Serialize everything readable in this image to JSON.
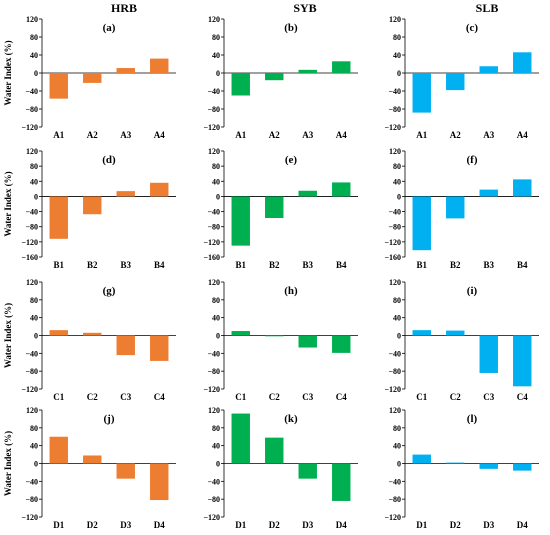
{
  "column_headers": [
    "HRB",
    "SYB",
    "SLB"
  ],
  "colors": {
    "HRB": "#ED7D31",
    "SYB": "#00B050",
    "SLB": "#00B0F0"
  },
  "ylabel": "Water Index (%)",
  "chart_data": [
    {
      "type": "bar",
      "title": "(a)",
      "basin": "HRB",
      "categories": [
        "A1",
        "A2",
        "A3",
        "A4"
      ],
      "values": [
        -57,
        -22,
        11,
        32
      ],
      "ylim": [
        -120,
        120
      ],
      "yticks": [
        120,
        80,
        40,
        0,
        -40,
        -80,
        -120
      ],
      "ylabel": "Water Index (%)"
    },
    {
      "type": "bar",
      "title": "(b)",
      "basin": "SYB",
      "categories": [
        "A1",
        "A2",
        "A3",
        "A4"
      ],
      "values": [
        -50,
        -16,
        7,
        26
      ],
      "ylim": [
        -120,
        120
      ],
      "yticks": [
        120,
        80,
        40,
        0,
        -40,
        -80,
        -120
      ]
    },
    {
      "type": "bar",
      "title": "(c)",
      "basin": "SLB",
      "categories": [
        "A1",
        "A2",
        "A3",
        "A4"
      ],
      "values": [
        -88,
        -38,
        15,
        46
      ],
      "ylim": [
        -120,
        120
      ],
      "yticks": [
        120,
        80,
        40,
        0,
        -40,
        -80,
        -120
      ]
    },
    {
      "type": "bar",
      "title": "(d)",
      "basin": "HRB",
      "categories": [
        "B1",
        "B2",
        "B3",
        "B4"
      ],
      "values": [
        -112,
        -47,
        14,
        36
      ],
      "ylim": [
        -160,
        120
      ],
      "yticks": [
        120,
        80,
        40,
        0,
        -40,
        -80,
        -120,
        -160
      ],
      "ylabel": "Water Index (%)"
    },
    {
      "type": "bar",
      "title": "(e)",
      "basin": "SYB",
      "categories": [
        "B1",
        "B2",
        "B3",
        "B4"
      ],
      "values": [
        -130,
        -57,
        15,
        37
      ],
      "ylim": [
        -160,
        120
      ],
      "yticks": [
        120,
        80,
        40,
        0,
        -40,
        -80,
        -120,
        -160
      ]
    },
    {
      "type": "bar",
      "title": "(f)",
      "basin": "SLB",
      "categories": [
        "B1",
        "B2",
        "B3",
        "B4"
      ],
      "values": [
        -142,
        -58,
        18,
        45
      ],
      "ylim": [
        -160,
        120
      ],
      "yticks": [
        120,
        80,
        40,
        0,
        -40,
        -80,
        -120,
        -160
      ]
    },
    {
      "type": "bar",
      "title": "(g)",
      "basin": "HRB",
      "categories": [
        "C1",
        "C2",
        "C3",
        "C4"
      ],
      "values": [
        12,
        6,
        -44,
        -57
      ],
      "ylim": [
        -120,
        120
      ],
      "yticks": [
        120,
        80,
        40,
        0,
        -40,
        -80,
        -120
      ],
      "ylabel": "Water Index (%)"
    },
    {
      "type": "bar",
      "title": "(h)",
      "basin": "SYB",
      "categories": [
        "C1",
        "C2",
        "C3",
        "C4"
      ],
      "values": [
        10,
        -1,
        -27,
        -39
      ],
      "ylim": [
        -120,
        120
      ],
      "yticks": [
        120,
        80,
        40,
        0,
        -40,
        -80,
        -120
      ]
    },
    {
      "type": "bar",
      "title": "(i)",
      "basin": "SLB",
      "categories": [
        "C1",
        "C2",
        "C3",
        "C4"
      ],
      "values": [
        12,
        11,
        -84,
        -114
      ],
      "ylim": [
        -120,
        120
      ],
      "yticks": [
        120,
        80,
        40,
        0,
        -40,
        -80,
        -120
      ]
    },
    {
      "type": "bar",
      "title": "(j)",
      "basin": "HRB",
      "categories": [
        "D1",
        "D2",
        "D3",
        "D4"
      ],
      "values": [
        60,
        18,
        -34,
        -82
      ],
      "ylim": [
        -120,
        120
      ],
      "yticks": [
        120,
        80,
        40,
        0,
        -40,
        -80,
        -120
      ],
      "ylabel": "Water Index (%)"
    },
    {
      "type": "bar",
      "title": "(k)",
      "basin": "SYB",
      "categories": [
        "D1",
        "D2",
        "D3",
        "D4"
      ],
      "values": [
        112,
        58,
        -34,
        -84
      ],
      "ylim": [
        -120,
        120
      ],
      "yticks": [
        120,
        80,
        40,
        0,
        -40,
        -80,
        -120
      ]
    },
    {
      "type": "bar",
      "title": "(l)",
      "basin": "SLB",
      "categories": [
        "D1",
        "D2",
        "D3",
        "D4"
      ],
      "values": [
        20,
        2,
        -12,
        -16
      ],
      "ylim": [
        -120,
        120
      ],
      "yticks": [
        120,
        80,
        40,
        0,
        -40,
        -80,
        -120
      ]
    }
  ]
}
